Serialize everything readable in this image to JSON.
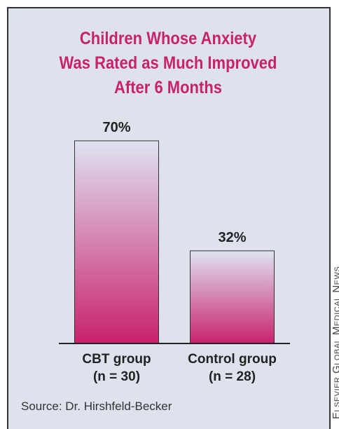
{
  "chart_data": {
    "type": "bar",
    "title": "Children Whose Anxiety\nWas Rated as Much Improved\nAfter 6 Months",
    "categories": [
      "CBT group\n(n = 30)",
      "Control group\n(n = 28)"
    ],
    "values": [
      70,
      32
    ],
    "value_labels": [
      "70%",
      "32%"
    ],
    "color": "#c8226c",
    "ylim": [
      0,
      100
    ],
    "source": "Source: Dr. Hirshfeld-Becker",
    "credit": "Elsevier Global Medical News"
  }
}
